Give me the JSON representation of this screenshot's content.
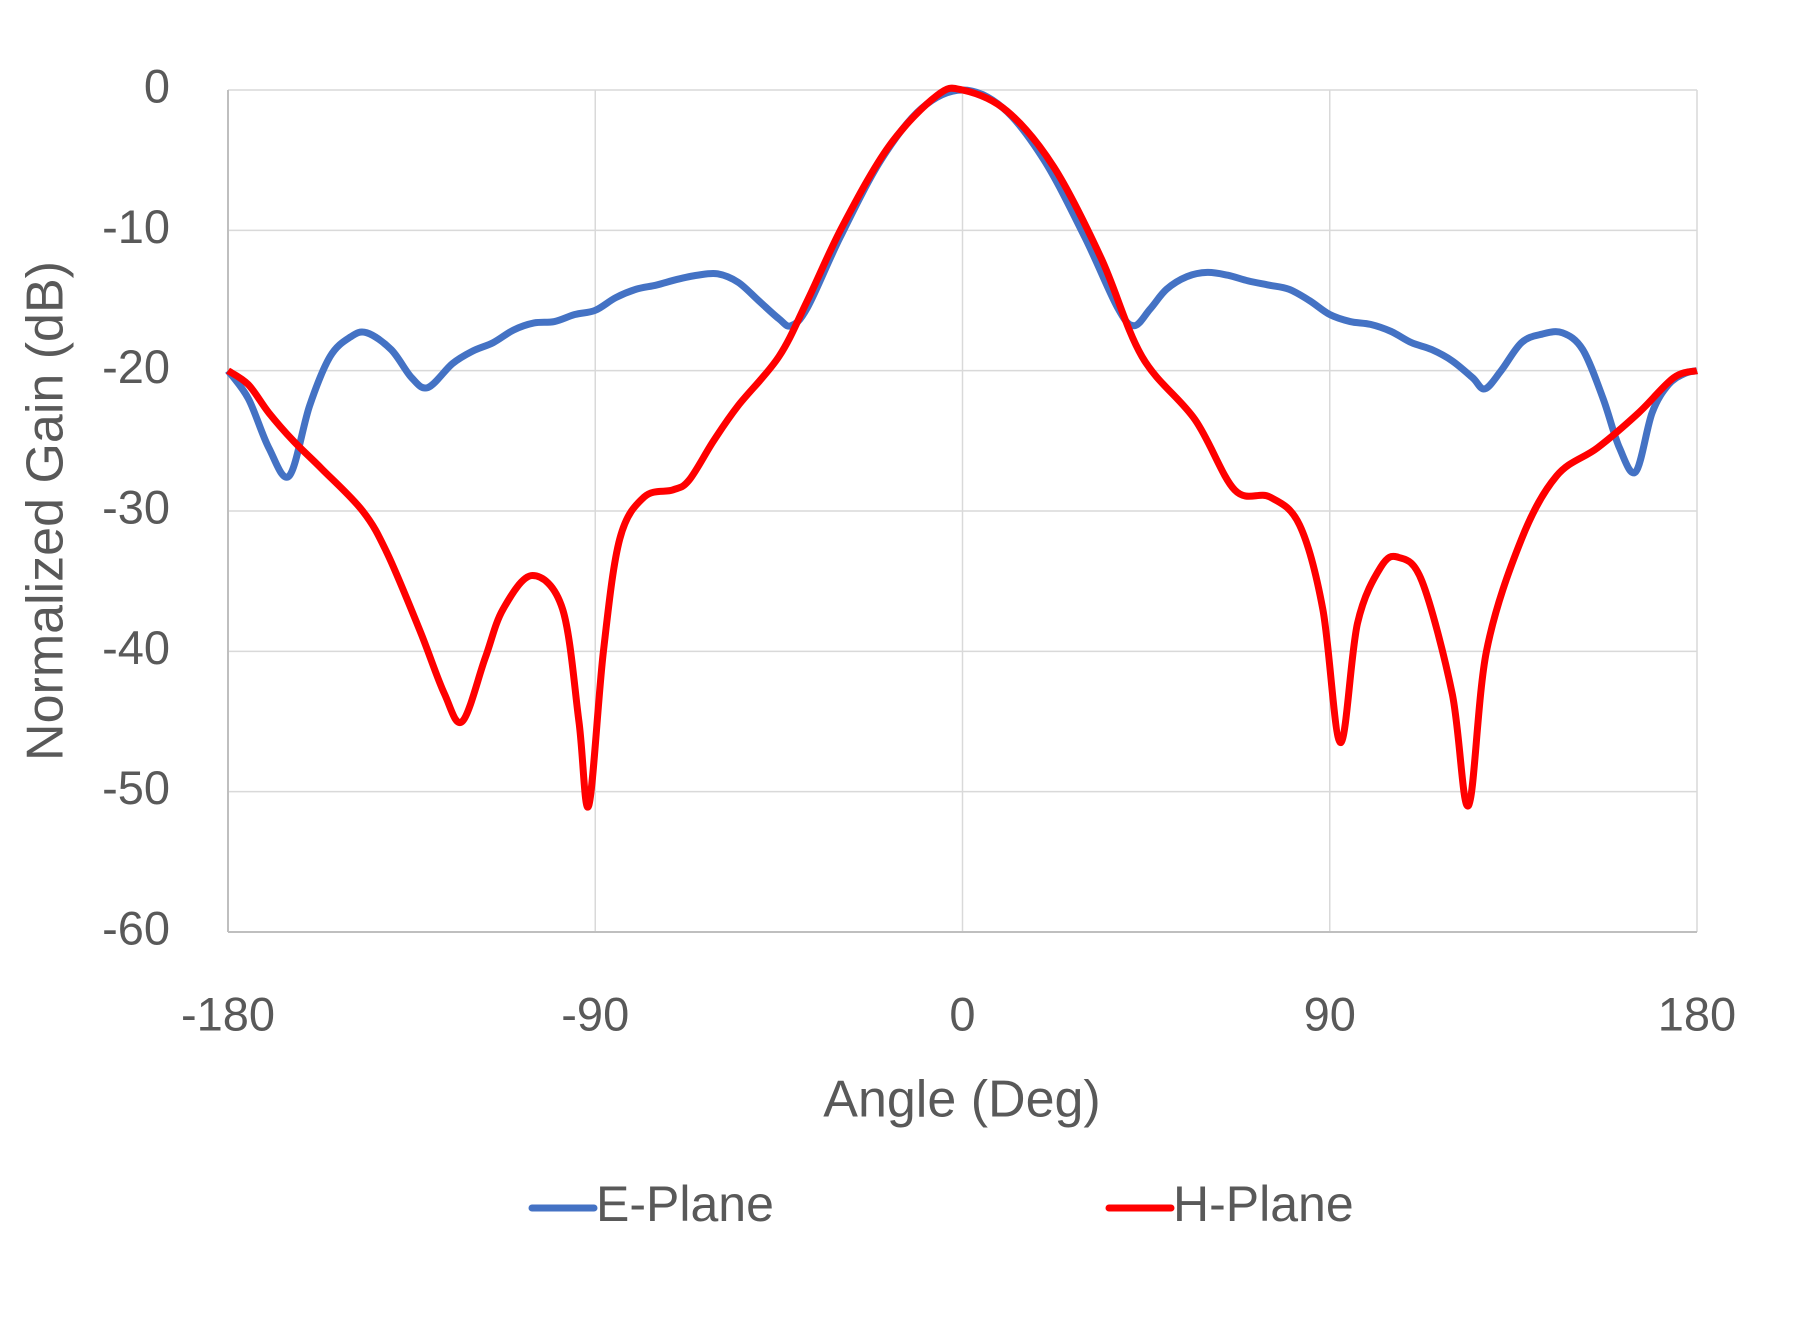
{
  "chart_data": {
    "type": "line",
    "xlabel": "Angle (Deg)",
    "ylabel": "Normalized Gain (dB)",
    "xlim": [
      -180,
      180
    ],
    "xticks": [
      -180,
      -90,
      0,
      90,
      180
    ],
    "ylim": [
      -60,
      0
    ],
    "yticks": [
      0,
      -10,
      -20,
      -30,
      -40,
      -50,
      -60
    ],
    "grid": true,
    "legend": "bottom",
    "series": [
      {
        "name": "E-Plane",
        "color": "#4472c4",
        "x": [
          -180,
          -175,
          -170,
          -165,
          -160,
          -155,
          -150,
          -146,
          -140,
          -135,
          -131,
          -125,
          -120,
          -115,
          -110,
          -105,
          -100,
          -95,
          -90,
          -85,
          -80,
          -75,
          -70,
          -65,
          -60,
          -55,
          -50,
          -45,
          -42,
          -38,
          -30,
          -20,
          -10,
          0,
          10,
          20,
          30,
          38,
          42,
          46,
          50,
          55,
          60,
          65,
          70,
          75,
          80,
          85,
          90,
          95,
          100,
          105,
          110,
          115,
          120,
          125,
          128,
          132,
          137,
          142,
          147,
          152,
          157,
          161,
          165,
          169,
          173,
          177,
          180
        ],
        "values": [
          -20,
          -22,
          -25.5,
          -27.5,
          -22.5,
          -19,
          -17.6,
          -17.3,
          -18.5,
          -20.5,
          -21.2,
          -19.5,
          -18.6,
          -18,
          -17.1,
          -16.6,
          -16.5,
          -16,
          -15.7,
          -14.8,
          -14.2,
          -13.9,
          -13.5,
          -13.2,
          -13.1,
          -13.7,
          -15,
          -16.3,
          -16.8,
          -15.5,
          -10.5,
          -5,
          -1.3,
          0,
          -1.3,
          -5,
          -10.5,
          -15.5,
          -16.8,
          -15.6,
          -14.2,
          -13.3,
          -13,
          -13.2,
          -13.6,
          -13.9,
          -14.2,
          -15,
          -16,
          -16.5,
          -16.7,
          -17.2,
          -18,
          -18.5,
          -19.3,
          -20.5,
          -21.3,
          -20,
          -18,
          -17.4,
          -17.3,
          -18.5,
          -22,
          -25.5,
          -27.2,
          -23,
          -21,
          -20.2,
          -20
        ]
      },
      {
        "name": "H-Plane",
        "color": "#ff0000",
        "x": [
          -180,
          -175,
          -170,
          -164,
          -157,
          -147,
          -141,
          -133,
          -127,
          -122.6,
          -117,
          -112.6,
          -105.4,
          -98,
          -94,
          -91.6,
          -88,
          -84,
          -78,
          -71,
          -67,
          -61,
          -55,
          -45,
          -38,
          -29.4,
          -18,
          -6.3,
          0,
          10.9,
          22.4,
          34,
          44,
          57,
          66.7,
          75.3,
          82.6,
          88.3,
          92.6,
          96.8,
          102.5,
          106.8,
          112.6,
          120,
          124,
          128.4,
          137,
          145.6,
          155.6,
          165.7,
          174.3,
          180
        ],
        "values": [
          -20,
          -21,
          -23,
          -25,
          -27,
          -30,
          -33,
          -38.5,
          -43,
          -45,
          -40.5,
          -37,
          -34.6,
          -37,
          -45,
          -51,
          -40,
          -32,
          -29,
          -28.5,
          -27.8,
          -25,
          -22.5,
          -19,
          -15,
          -9.7,
          -4,
          -0.4,
          0,
          -1.5,
          -5.5,
          -12,
          -19,
          -23.5,
          -28.5,
          -29,
          -31,
          -37,
          -46.5,
          -38,
          -34,
          -33.3,
          -35,
          -43,
          -51,
          -40,
          -32,
          -27.5,
          -25.5,
          -23,
          -20.5,
          -20
        ]
      }
    ]
  }
}
